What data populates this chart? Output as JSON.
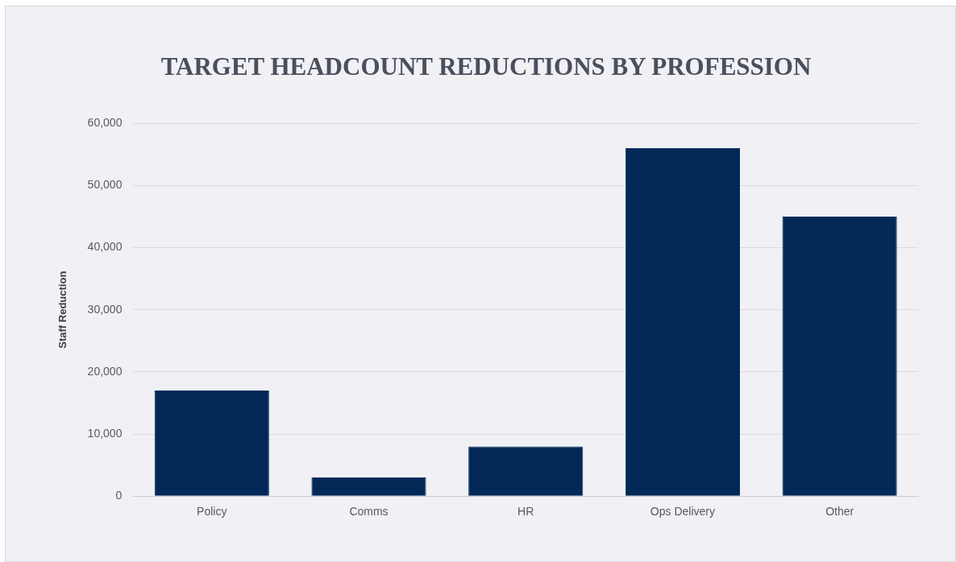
{
  "chart_data": {
    "type": "bar",
    "title": "TARGET HEADCOUNT REDUCTIONS BY PROFESSION",
    "ylabel": "Staff Reduction",
    "categories": [
      "Policy",
      "Comms",
      "HR",
      "Ops Delivery",
      "Other"
    ],
    "values": [
      17000,
      3000,
      8000,
      56000,
      45000
    ],
    "color": "#022857",
    "ylim": [
      0,
      60000
    ],
    "yticks": [
      {
        "value": 0,
        "label": "0"
      },
      {
        "value": 10000,
        "label": "10,000"
      },
      {
        "value": 20000,
        "label": "20,000"
      },
      {
        "value": 30000,
        "label": "30,000"
      },
      {
        "value": 40000,
        "label": "40,000"
      },
      {
        "value": 50000,
        "label": "50,000"
      },
      {
        "value": 60000,
        "label": "60,000"
      }
    ],
    "grid": "y",
    "legend": false
  }
}
